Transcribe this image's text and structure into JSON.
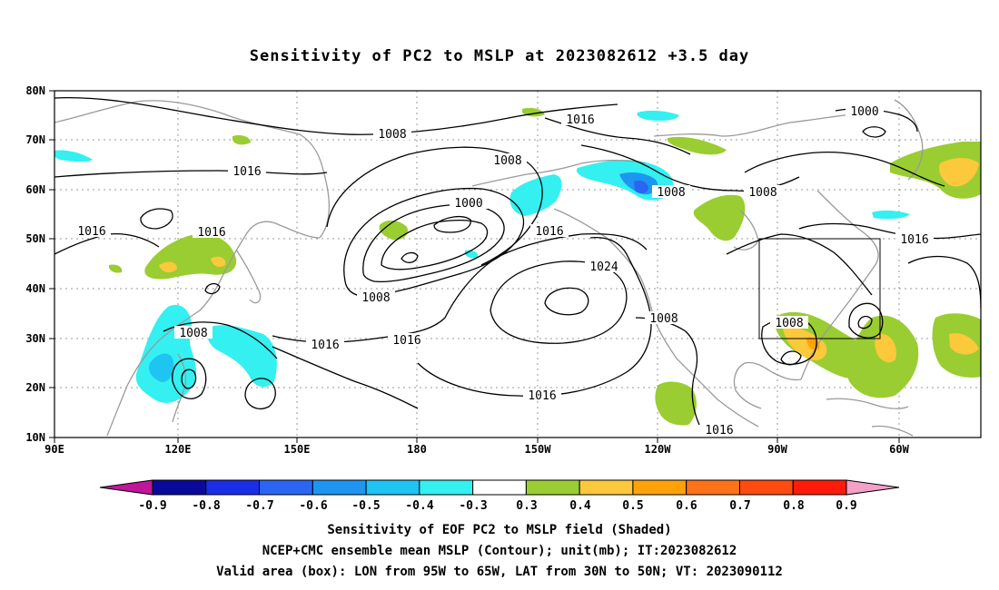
{
  "title": "Sensitivity of PC2 to MSLP at 2023082612 +3.5 day",
  "lat_labels": [
    "80N",
    "70N",
    "60N",
    "50N",
    "40N",
    "30N",
    "20N",
    "10N"
  ],
  "lon_labels": [
    "90E",
    "120E",
    "150E",
    "180",
    "150W",
    "120W",
    "90W",
    "60W"
  ],
  "contour_labels": {
    "l1": "1008",
    "l2": "1016",
    "l3": "1016",
    "l4": "1016",
    "l5": "1008",
    "l6": "1000",
    "l7": "1016",
    "l8": "1008",
    "l9": "1000",
    "l10": "1016",
    "l11": "1024",
    "l12": "1008",
    "l13": "1008",
    "l14": "1016",
    "l15": "1016",
    "l16": "1016",
    "l17": "1016",
    "l18": "1008",
    "l19": "1008",
    "l20": "1008",
    "l21": "1016"
  },
  "colorbar": {
    "labels": [
      "-0.9",
      "-0.8",
      "-0.7",
      "-0.6",
      "-0.5",
      "-0.4",
      "-0.3",
      "0.3",
      "0.4",
      "0.5",
      "0.6",
      "0.7",
      "0.8",
      "0.9"
    ],
    "colors": [
      "#0a0a9a",
      "#1a2ee6",
      "#2a66f2",
      "#1e96f0",
      "#1ec4f2",
      "#34f0f0",
      "#ffffff",
      "#9acd32",
      "#fcc83c",
      "#ffa20a",
      "#ff7318",
      "#ff4a10",
      "#ff1a0a"
    ],
    "low_arrow_color": "#c0169a",
    "high_arrow_color": "#f4a0c8"
  },
  "box_region": {
    "lon_range": [
      "95W",
      "65W"
    ],
    "lat_range": [
      "30N",
      "50N"
    ]
  },
  "caption": {
    "line1": "Sensitivity of EOF PC2 to MSLP field (Shaded)",
    "line2": "NCEP+CMC ensemble mean MSLP (Contour); unit(mb); IT:2023082612",
    "line3": "Valid area (box): LON from 95W to 65W, LAT from 30N to 50N; VT: 2023090112"
  }
}
